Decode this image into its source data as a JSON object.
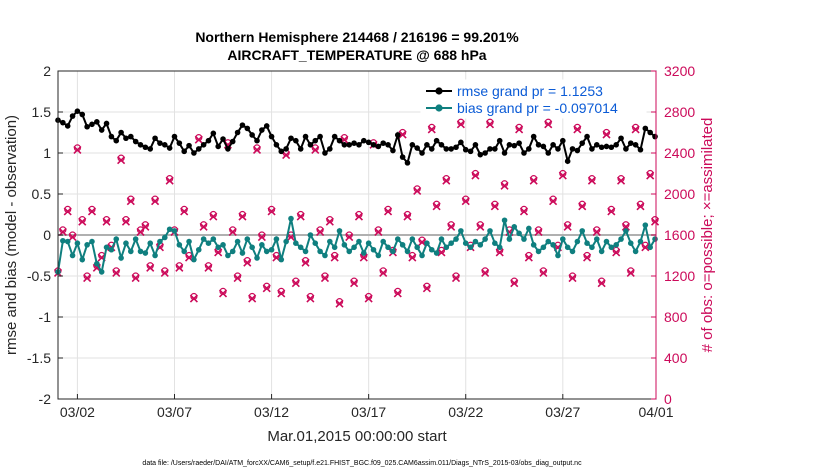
{
  "chart_data": {
    "type": "line",
    "title_line1": "Northern Hemisphere 214468 / 216196 = 99.201%",
    "title_line2": "AIRCRAFT_TEMPERATURE @ 688 hPa",
    "xlabel": "Mar.01,2015 00:00:00 start",
    "ylabel_left": "rmse and bias (model - observation)",
    "ylabel_right": "# of obs: o=possible; ×=assimilated",
    "xlim": [
      0.5,
      31.3
    ],
    "ylim_left": [
      -2,
      2
    ],
    "ylim_right": [
      0,
      3200
    ],
    "x_ticks": [
      1.5,
      6.5,
      11.5,
      16.5,
      21.5,
      26.5,
      31.5
    ],
    "x_tick_labels": [
      "03/02",
      "03/07",
      "03/12",
      "03/17",
      "03/22",
      "03/27",
      "04/01"
    ],
    "y_ticks_left": [
      -2,
      -1.5,
      -1,
      -0.5,
      0,
      0.5,
      1,
      1.5,
      2
    ],
    "y_tick_labels_left": [
      "-2",
      "-1.5",
      "-1",
      "-0.5",
      "0",
      "0.5",
      "1",
      "1.5",
      "2"
    ],
    "y_ticks_right": [
      0,
      400,
      800,
      1200,
      1600,
      2000,
      2400,
      2800,
      3200
    ],
    "y_tick_labels_right": [
      "0",
      "400",
      "800",
      "1200",
      "1600",
      "2000",
      "2400",
      "2800",
      "3200"
    ],
    "x_start": 0.5,
    "x_step": 0.25,
    "series": [
      {
        "name": "rmse grand pr = 1.1253",
        "color": "#000000",
        "axis": "left",
        "values": [
          1.4,
          1.37,
          1.33,
          1.45,
          1.51,
          1.47,
          1.32,
          1.35,
          1.38,
          1.28,
          1.36,
          1.2,
          1.15,
          1.25,
          1.18,
          1.2,
          1.14,
          1.1,
          1.07,
          1.05,
          1.18,
          1.12,
          1.1,
          1.06,
          1.2,
          1.12,
          1.02,
          1.09,
          1.0,
          1.05,
          1.1,
          1.15,
          1.24,
          1.08,
          1.17,
          1.05,
          1.14,
          1.25,
          1.34,
          1.3,
          1.22,
          1.15,
          1.28,
          1.33,
          1.2,
          1.1,
          1.02,
          1.05,
          1.18,
          1.15,
          1.05,
          1.2,
          1.1,
          1.15,
          1.2,
          1.0,
          1.05,
          1.2,
          1.15,
          1.1,
          1.1,
          1.12,
          1.1,
          1.15,
          1.13,
          1.1,
          1.08,
          1.12,
          1.1,
          1.03,
          1.22,
          0.95,
          0.88,
          1.1,
          1.06,
          1.0,
          1.1,
          1.05,
          1.15,
          1.1,
          1.05,
          1.05,
          1.07,
          1.13,
          1.04,
          1.02,
          1.1,
          0.98,
          1.0,
          1.05,
          1.05,
          1.15,
          1.0,
          1.1,
          1.09,
          1.12,
          1.0,
          1.05,
          1.2,
          1.1,
          1.08,
          1.0,
          1.1,
          1.05,
          1.15,
          0.9,
          1.05,
          1.03,
          1.12,
          1.2,
          1.05,
          1.1,
          1.07,
          1.08,
          1.07,
          1.1,
          1.18,
          1.05,
          1.12,
          1.1,
          1.04,
          1.3,
          1.25,
          1.2,
          1.15,
          1.12,
          1.0,
          1.2,
          1.17,
          1.25,
          1.3,
          1.25,
          1.22,
          1.3,
          1.26,
          1.4,
          1.28,
          1.35,
          1.3,
          1.32
        ]
      },
      {
        "name": "bias grand pr = -0.097014",
        "color": "#0f7f7f",
        "axis": "left",
        "values": [
          -0.45,
          -0.07,
          -0.08,
          -0.25,
          -0.1,
          -0.3,
          -0.12,
          -0.08,
          -0.35,
          -0.45,
          -0.15,
          -0.18,
          -0.05,
          -0.28,
          -0.1,
          -0.2,
          -0.05,
          -0.2,
          -0.22,
          -0.1,
          -0.25,
          -0.08,
          -0.03,
          0.07,
          0.05,
          -0.12,
          -0.2,
          -0.08,
          -0.3,
          -0.18,
          -0.05,
          -0.1,
          -0.05,
          -0.15,
          -0.12,
          -0.25,
          -0.2,
          -0.08,
          -0.22,
          -0.05,
          -0.15,
          -0.28,
          -0.12,
          -0.2,
          -0.18,
          -0.05,
          -0.3,
          -0.08,
          0.2,
          -0.1,
          -0.15,
          -0.2,
          0.0,
          -0.1,
          -0.2,
          -0.25,
          -0.08,
          -0.15,
          0.05,
          -0.12,
          -0.2,
          -0.15,
          -0.08,
          -0.22,
          -0.1,
          -0.18,
          -0.25,
          -0.08,
          -0.15,
          -0.2,
          -0.05,
          -0.12,
          -0.2,
          -0.05,
          -0.15,
          -0.25,
          -0.1,
          -0.18,
          -0.22,
          -0.05,
          -0.15,
          -0.1,
          -0.05,
          0.05,
          -0.1,
          -0.15,
          -0.08,
          -0.12,
          -0.05,
          0.05,
          -0.1,
          -0.15,
          0.18,
          -0.05,
          0.1,
          0.02,
          -0.05,
          0.08,
          -0.12,
          -0.2,
          -0.15,
          -0.08,
          -0.12,
          -0.25,
          -0.05,
          -0.15,
          -0.2,
          -0.08,
          0.05,
          -0.1,
          -0.15,
          -0.05,
          -0.2,
          -0.08,
          -0.15,
          -0.12,
          -0.05,
          0.05,
          -0.1,
          -0.2,
          -0.08,
          0.12,
          -0.15,
          -0.05,
          0.18,
          -0.1,
          -0.2,
          -0.15,
          -0.08,
          -0.12,
          -0.05,
          -0.22,
          -0.3,
          -0.15,
          -0.08,
          -0.25,
          -0.2,
          -0.28,
          -0.22,
          -0.3
        ]
      }
    ],
    "obs_possible": {
      "label": "o=possible",
      "color": "#cc0a5a",
      "axis": "right",
      "values": [
        1250,
        1650,
        1850,
        1600,
        2450,
        1750,
        1200,
        1850,
        1300,
        1400,
        1750,
        1500,
        1250,
        2350,
        1750,
        1950,
        1200,
        1650,
        1700,
        1300,
        1950,
        1500,
        1250,
        2150,
        1650,
        1300,
        1850,
        1400,
        1000,
        2550,
        1700,
        1300,
        1800,
        1450,
        1050,
        2500,
        1650,
        1200,
        1800,
        1350,
        1000,
        2450,
        1600,
        1100,
        1850,
        1400,
        1050,
        2400,
        1600,
        1150,
        1800,
        1350,
        1000,
        2450,
        1650,
        1200,
        1750,
        1400,
        950,
        2550,
        1600,
        1150,
        1800,
        1400,
        1000,
        2500,
        1650,
        1250,
        1850,
        1450,
        1050,
        2600,
        1800,
        1400,
        2050,
        1550,
        1100,
        2650,
        1900,
        1450,
        2150,
        1700,
        1200,
        2700,
        1950,
        1500,
        2200,
        1700,
        1250,
        2700,
        1900,
        1450,
        2100,
        1650,
        1150,
        2650,
        1850,
        1400,
        2150,
        1650,
        1250,
        2700,
        1950,
        1500,
        2200,
        1700,
        1200,
        2650,
        1900,
        1400,
        2150,
        1650,
        1150,
        2600,
        1850,
        1450,
        2150,
        1700,
        1250,
        2650,
        1900,
        1500,
        2200,
        1750,
        1250,
        2650,
        1950,
        1550,
        2250,
        1750,
        1300,
        2650,
        2000,
        1600,
        2300,
        1800,
        1350,
        2700,
        2000,
        1600,
        2300,
        1850,
        1400,
        2550,
        1850,
        1600
      ]
    },
    "obs_assimilated": {
      "label": "×=assimilated",
      "color": "#cc0a5a",
      "axis": "right",
      "values": [
        1230,
        1630,
        1830,
        1580,
        2430,
        1730,
        1180,
        1830,
        1280,
        1380,
        1730,
        1480,
        1230,
        2330,
        1730,
        1930,
        1180,
        1630,
        1680,
        1280,
        1930,
        1480,
        1230,
        2130,
        1630,
        1280,
        1830,
        1380,
        980,
        2530,
        1680,
        1280,
        1780,
        1430,
        1030,
        2480,
        1630,
        1180,
        1780,
        1330,
        980,
        2430,
        1580,
        1080,
        1830,
        1380,
        1030,
        2380,
        1580,
        1130,
        1780,
        1330,
        980,
        2430,
        1630,
        1180,
        1730,
        1380,
        930,
        2530,
        1580,
        1130,
        1780,
        1380,
        980,
        2480,
        1630,
        1230,
        1830,
        1430,
        1030,
        2580,
        1780,
        1380,
        2030,
        1530,
        1080,
        2630,
        1880,
        1430,
        2130,
        1680,
        1180,
        2680,
        1930,
        1480,
        2180,
        1680,
        1230,
        2680,
        1880,
        1430,
        2080,
        1630,
        1130,
        2630,
        1830,
        1380,
        2130,
        1630,
        1230,
        2680,
        1930,
        1480,
        2180,
        1680,
        1180,
        2630,
        1880,
        1380,
        2130,
        1630,
        1130,
        2580,
        1830,
        1430,
        2130,
        1680,
        1230,
        2630,
        1880,
        1480,
        2180,
        1730,
        1230,
        2630,
        1930,
        1530,
        2230,
        1730,
        1280,
        2630,
        1980,
        1580,
        2280,
        1780,
        1330,
        2680,
        1980,
        1580,
        2280,
        1830,
        1380,
        2530,
        1830,
        1580
      ]
    },
    "zero_line_color": "#b0b0b0",
    "right_axis_color": "#cc0a5a",
    "legend_position": "top-right",
    "legend_text_color": "#0b5bd6",
    "grid": true,
    "footnote": "data file: /Users/raeder/DAI/ATM_forcXX/CAM6_setup/f.e21.FHIST_BGC.f09_025.CAM6assim.011/Diags_NTrS_2015-03/obs_diag_output.nc"
  }
}
